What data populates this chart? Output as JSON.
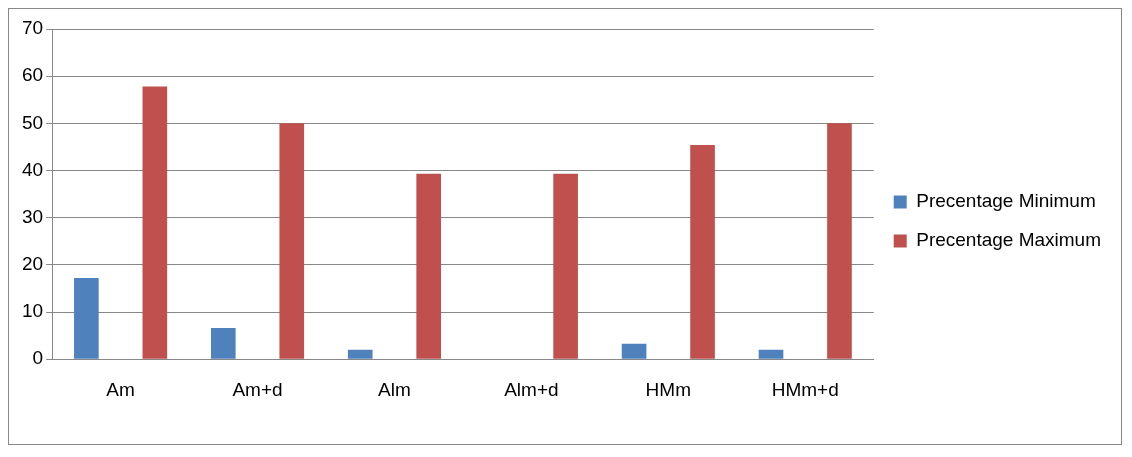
{
  "chart_data": {
    "type": "bar",
    "categories": [
      "Am",
      "Am+d",
      "Alm",
      "Alm+d",
      "HMm",
      "HMm+d"
    ],
    "series": [
      {
        "name": "Precentage Minimum",
        "color": "#4f81bd",
        "values": [
          17.2,
          6.6,
          2.0,
          0,
          3.3,
          2.0
        ]
      },
      {
        "name": "Precentage Maximum",
        "color": "#c0504d",
        "values": [
          57.8,
          50,
          39.3,
          39.3,
          45.4,
          50
        ]
      }
    ],
    "ylim": [
      0,
      70
    ],
    "yticks": [
      0,
      10,
      20,
      30,
      40,
      50,
      60,
      70
    ],
    "grid": "y",
    "legend": "right"
  }
}
